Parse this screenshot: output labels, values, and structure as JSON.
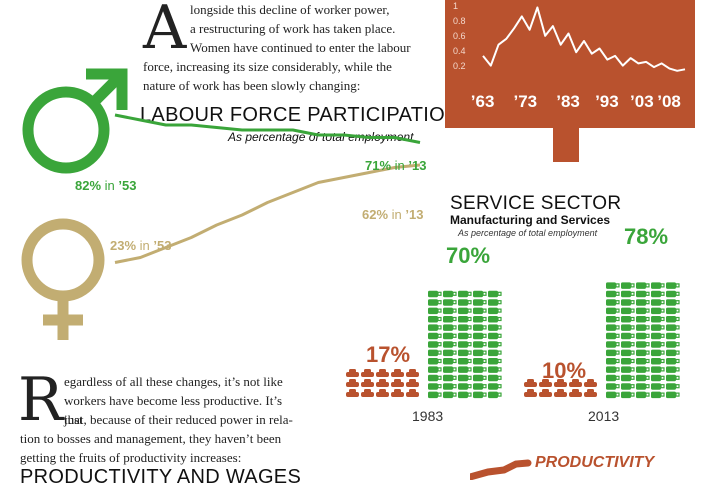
{
  "intro": {
    "dropcap": "A",
    "lines": [
      "longside this decline of worker power,",
      "a restructuring of work has taken place.",
      "Women have continued to enter the labour",
      "force, increasing its size considerably, while the",
      "nature of work has been slowly changing:"
    ]
  },
  "lfp": {
    "title": "LABOUR FORCE PARTICIPATION",
    "subtitle": "As percentage of total employment",
    "men": {
      "start_pct": "82%",
      "start_in": " in ",
      "start_year": "’53",
      "end_pct": "71%",
      "end_in": " in ",
      "end_year": "’13"
    },
    "women": {
      "start_pct": "23%",
      "start_in": " in ",
      "start_year": "’53",
      "end_pct": "62%",
      "end_in": " in ",
      "end_year": "’13"
    }
  },
  "sign": {
    "xticks": [
      "’63",
      "’73",
      "’83",
      "’93",
      "’03",
      "’08"
    ],
    "yticks": [
      "1",
      "0.8",
      "0.6",
      "0.4",
      "0.2"
    ]
  },
  "service": {
    "title": "SERVICE SECTOR",
    "subtitle": "Manufacturing and Services",
    "note": "As percentage of total employment",
    "years": [
      "1983",
      "2013"
    ],
    "manufacturing": [
      "17%",
      "10%"
    ],
    "services": [
      "70%",
      "78%"
    ]
  },
  "outro": {
    "dropcap": "R",
    "lines": [
      "egardless of all these changes, it’s not like",
      "workers have become less productive. It’s just",
      "that, because of their reduced power in rela-",
      "tion to bosses and management, they haven’t been",
      "getting the fruits of productivity increases:"
    ]
  },
  "bottom": {
    "heading": "PRODUCTIVITY AND WAGES",
    "productivity_label": "PRODUCTIVITY"
  },
  "colors": {
    "men": "#3aa53a",
    "women": "#c2ad72",
    "sign": "#b9522e",
    "service": "#3aa53a",
    "manufacturing": "#b9522e"
  },
  "chart_data": [
    {
      "type": "line",
      "title": "LABOUR FORCE PARTICIPATION",
      "subtitle": "As percentage of total employment",
      "x": [
        1953,
        1958,
        1963,
        1968,
        1973,
        1978,
        1983,
        1988,
        1993,
        1998,
        2003,
        2008,
        2013
      ],
      "series": [
        {
          "name": "",
          "values": [
            82,
            80,
            78,
            78,
            77,
            76,
            76,
            76,
            74,
            74,
            73,
            73,
            71
          ]
        },
        {
          "name": "",
          "values": [
            23,
            25,
            29,
            33,
            38,
            42,
            47,
            51,
            55,
            57,
            59,
            61,
            62
          ]
        }
      ],
      "annotations": [
        "82% in ’53",
        "71% in ’13",
        "23% in ’53",
        "62% in ’13"
      ],
      "ylim": [
        0,
        100
      ]
    },
    {
      "type": "line",
      "categories": [
        "’63",
        "’73",
        "’83",
        "’93",
        "’03",
        "’08"
      ],
      "x": [
        1960,
        1962,
        1964,
        1966,
        1968,
        1970,
        1972,
        1974,
        1976,
        1978,
        1980,
        1982,
        1984,
        1986,
        1988,
        1990,
        1992,
        1994,
        1996,
        1998,
        2000,
        2002,
        2004,
        2006,
        2008,
        2010,
        2012
      ],
      "values": [
        0.35,
        0.22,
        0.5,
        0.58,
        0.72,
        0.88,
        0.7,
        1.0,
        0.62,
        0.75,
        0.5,
        0.65,
        0.4,
        0.55,
        0.38,
        0.45,
        0.3,
        0.35,
        0.22,
        0.32,
        0.25,
        0.27,
        0.2,
        0.25,
        0.18,
        0.15,
        0.17
      ],
      "yticks": [
        1,
        0.8,
        0.6,
        0.4,
        0.2
      ],
      "ylim": [
        0,
        1.1
      ]
    },
    {
      "type": "bar",
      "title": "SERVICE SECTOR",
      "subtitle": "Manufacturing and Services",
      "note": "As percentage of total employment",
      "categories": [
        "1983",
        "2013"
      ],
      "series": [
        {
          "name": "",
          "values": [
            17,
            10
          ]
        },
        {
          "name": "",
          "values": [
            70,
            78
          ]
        }
      ],
      "ylim": [
        0,
        100
      ]
    }
  ]
}
